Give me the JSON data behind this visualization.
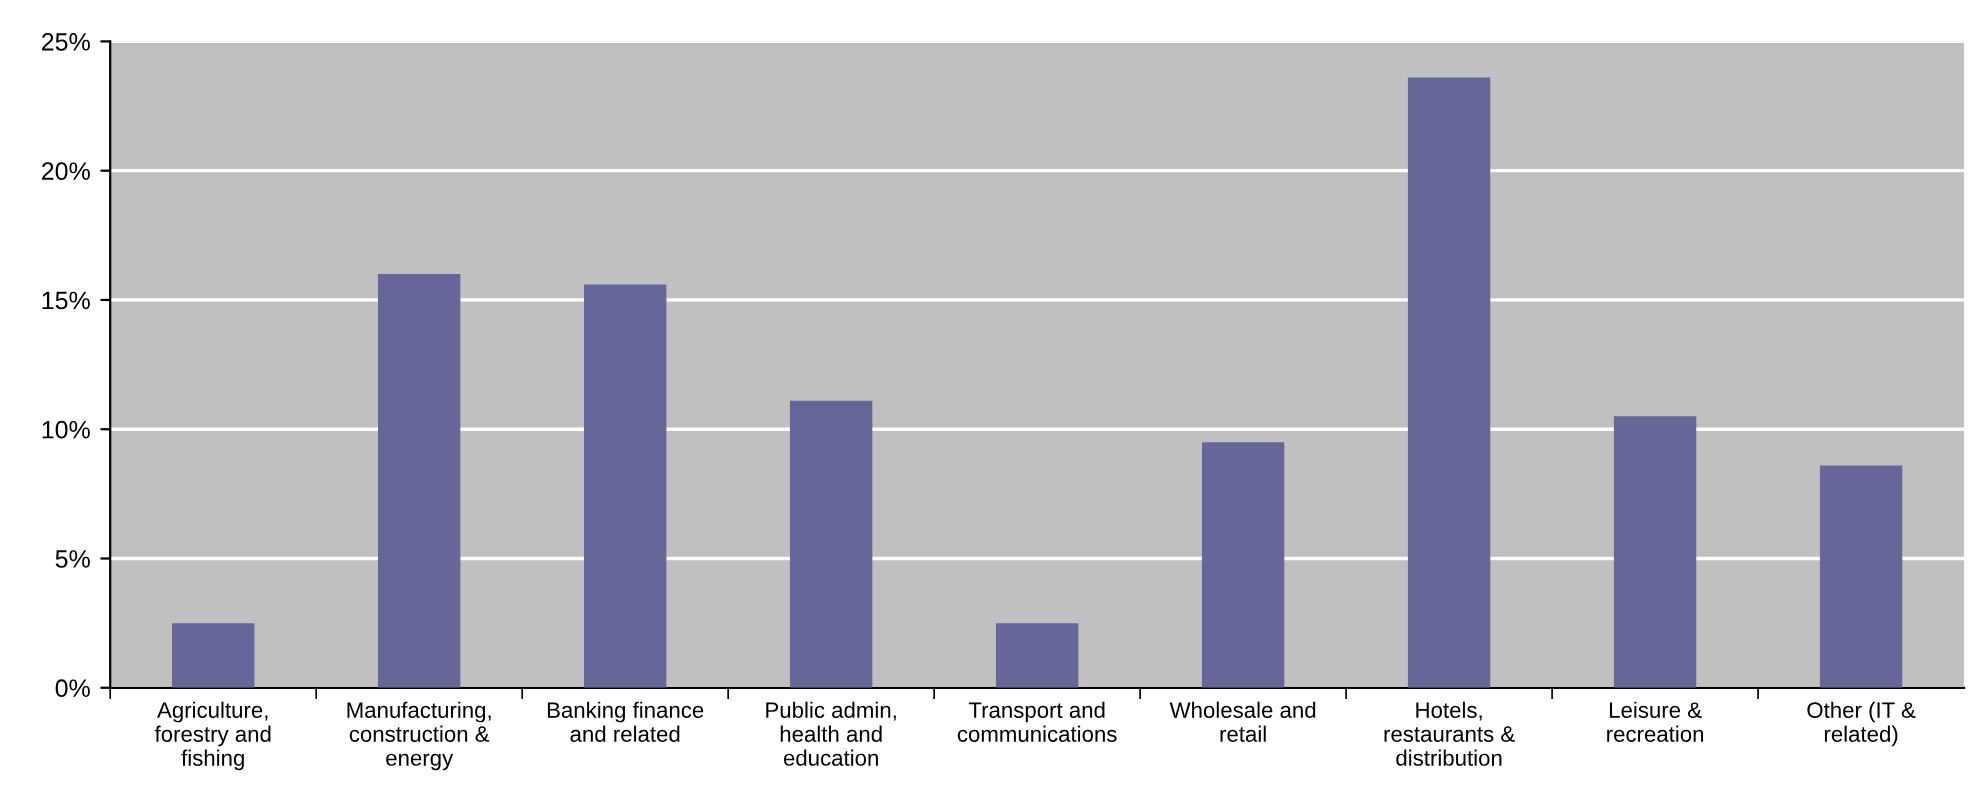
{
  "chart_data": {
    "type": "bar",
    "categories": [
      "Agriculture,\nforestry and\nfishing",
      "Manufacturing,\nconstruction &\nenergy",
      "Banking finance\nand related",
      "Public admin,\nhealth and\neducation",
      "Transport and\ncommunications",
      "Wholesale and\nretail",
      "Hotels,\nrestaurants &\ndistribution",
      "Leisure &\nrecreation",
      "Other (IT &\nrelated)"
    ],
    "values": [
      2.5,
      16.0,
      15.6,
      11.1,
      2.5,
      9.5,
      23.6,
      10.5,
      8.6
    ],
    "color": "#666699",
    "ylim": [
      0,
      25
    ],
    "yticks": [
      {
        "value": 0,
        "label": "0%"
      },
      {
        "value": 5,
        "label": "5%"
      },
      {
        "value": 10,
        "label": "10%"
      },
      {
        "value": 15,
        "label": "15%"
      },
      {
        "value": 20,
        "label": "20%"
      },
      {
        "value": 25,
        "label": "25%"
      }
    ],
    "grid": "y",
    "legend": false
  }
}
